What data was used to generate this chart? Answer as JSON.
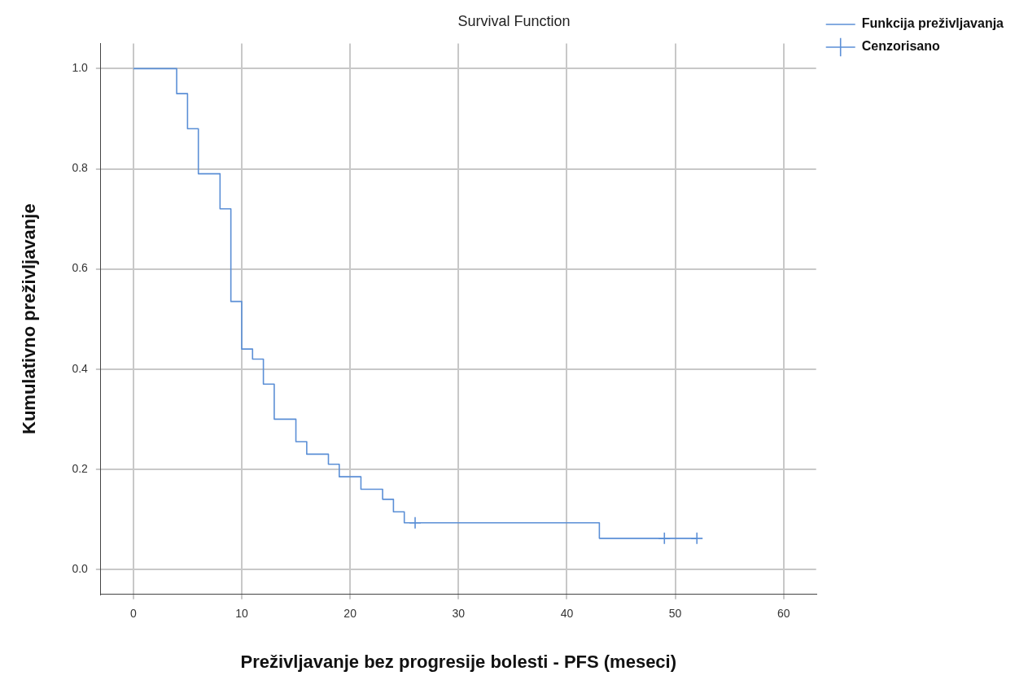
{
  "chart_data": {
    "type": "step",
    "title": "Survival Function",
    "xlabel": "Preživljavanje bez progresije bolesti - PFS (meseci)",
    "ylabel": "Kumulativno preživljavanje",
    "xlim": [
      -3,
      63
    ],
    "xticks": [
      0,
      10,
      20,
      30,
      40,
      50,
      60
    ],
    "ylim": [
      -0.05,
      1.05
    ],
    "yticks": [
      {
        "value": 0,
        "label": "0.0"
      },
      {
        "value": 0.2,
        "label": "0.2"
      },
      {
        "value": 0.4,
        "label": "0.4"
      },
      {
        "value": 0.6,
        "label": "0.6"
      },
      {
        "value": 0.8,
        "label": "0.8"
      },
      {
        "value": 1,
        "label": "1.0"
      }
    ],
    "grid": true,
    "legend": "top right",
    "series": [
      {
        "name": "Funkcija preživljavanja",
        "color": "#5b8fd6",
        "marker": "none",
        "x": [
          0,
          4,
          5,
          6,
          8,
          9,
          10,
          11,
          12,
          13,
          15,
          16,
          18,
          19,
          21,
          23,
          24,
          25,
          43,
          52
        ],
        "values": [
          1.0,
          0.95,
          0.88,
          0.79,
          0.72,
          0.535,
          0.44,
          0.42,
          0.37,
          0.3,
          0.255,
          0.23,
          0.21,
          0.185,
          0.16,
          0.14,
          0.115,
          0.093,
          0.062,
          0.062
        ]
      },
      {
        "name": "Cenzorisano",
        "type": "scatter",
        "color": "#5b8fd6",
        "marker": "cross",
        "x": [
          26,
          49,
          52
        ],
        "values": [
          0.093,
          0.062,
          0.062
        ]
      }
    ]
  }
}
